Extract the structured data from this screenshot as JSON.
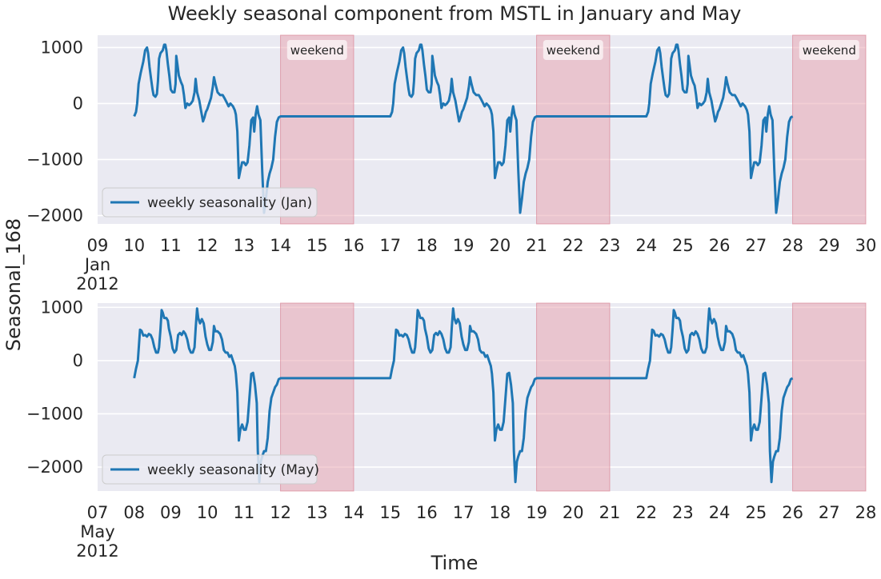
{
  "chart_data": {
    "type": "line",
    "title": "Weekly seasonal component from MSTL in January and May",
    "xlabel": "Time",
    "ylabel": "Seasonal_168",
    "colors": {
      "line": "#1f77b4",
      "weekend": "#e8a0ac",
      "background": "#eaeaf2",
      "grid": "#ffffff"
    },
    "panels": [
      {
        "name": "jan",
        "series_name": "weekly seasonality (Jan)",
        "x_start": "2012-01-09",
        "x_end": "2012-01-30",
        "x_ticks": [
          "09",
          "10",
          "11",
          "12",
          "13",
          "14",
          "15",
          "16",
          "17",
          "18",
          "19",
          "20",
          "21",
          "22",
          "23",
          "24",
          "25",
          "26",
          "27",
          "28",
          "29",
          "30"
        ],
        "x_month_label": "Jan",
        "x_year_label": "2012",
        "ylim": [
          -2150,
          1220
        ],
        "y_ticks": [
          1000,
          0,
          -1000,
          -2000
        ],
        "y_tick_labels": [
          "1000",
          "0",
          "−1000",
          "−2000"
        ],
        "weekends": [
          {
            "start": "2012-01-14",
            "end": "2012-01-16",
            "label": "weekend"
          },
          {
            "start": "2012-01-21",
            "end": "2012-01-23",
            "label": "weekend"
          },
          {
            "start": "2012-01-28",
            "end": "2012-01-30",
            "label": "weekend"
          }
        ],
        "pattern": [
          [
            0.0,
            -230
          ],
          [
            0.05,
            -150
          ],
          [
            0.08,
            0
          ],
          [
            0.12,
            350
          ],
          [
            0.18,
            550
          ],
          [
            0.25,
            750
          ],
          [
            0.3,
            950
          ],
          [
            0.35,
            1000
          ],
          [
            0.38,
            900
          ],
          [
            0.42,
            650
          ],
          [
            0.46,
            450
          ],
          [
            0.5,
            250
          ],
          [
            0.53,
            150
          ],
          [
            0.58,
            120
          ],
          [
            0.62,
            170
          ],
          [
            0.65,
            400
          ],
          [
            0.68,
            800
          ],
          [
            0.72,
            900
          ],
          [
            0.78,
            950
          ],
          [
            0.82,
            1050
          ],
          [
            0.85,
            1050
          ],
          [
            0.88,
            950
          ],
          [
            0.92,
            700
          ],
          [
            0.96,
            500
          ],
          [
            1.0,
            250
          ],
          [
            1.05,
            200
          ],
          [
            1.1,
            200
          ],
          [
            1.13,
            350
          ],
          [
            1.15,
            850
          ],
          [
            1.18,
            700
          ],
          [
            1.22,
            500
          ],
          [
            1.28,
            380
          ],
          [
            1.32,
            320
          ],
          [
            1.36,
            150
          ],
          [
            1.4,
            -80
          ],
          [
            1.45,
            0
          ],
          [
            1.5,
            -30
          ],
          [
            1.55,
            0
          ],
          [
            1.6,
            50
          ],
          [
            1.65,
            200
          ],
          [
            1.68,
            440
          ],
          [
            1.72,
            200
          ],
          [
            1.78,
            50
          ],
          [
            1.82,
            -100
          ],
          [
            1.88,
            -320
          ],
          [
            1.92,
            -250
          ],
          [
            1.96,
            -150
          ],
          [
            2.0,
            -100
          ],
          [
            2.05,
            0
          ],
          [
            2.1,
            100
          ],
          [
            2.15,
            300
          ],
          [
            2.18,
            470
          ],
          [
            2.22,
            350
          ],
          [
            2.28,
            200
          ],
          [
            2.35,
            150
          ],
          [
            2.42,
            150
          ],
          [
            2.48,
            80
          ],
          [
            2.52,
            30
          ],
          [
            2.58,
            -50
          ],
          [
            2.63,
            0
          ],
          [
            2.7,
            -50
          ],
          [
            2.75,
            -120
          ],
          [
            2.78,
            -200
          ],
          [
            2.82,
            -500
          ],
          [
            2.86,
            -1330
          ],
          [
            2.9,
            -1200
          ],
          [
            2.95,
            -1050
          ],
          [
            3.0,
            -1050
          ],
          [
            3.05,
            -1100
          ],
          [
            3.1,
            -1050
          ],
          [
            3.15,
            -750
          ],
          [
            3.2,
            -300
          ],
          [
            3.25,
            -250
          ],
          [
            3.28,
            -500
          ],
          [
            3.32,
            -200
          ],
          [
            3.36,
            -50
          ],
          [
            3.4,
            -200
          ],
          [
            3.45,
            -300
          ],
          [
            3.5,
            -1200
          ],
          [
            3.55,
            -1950
          ],
          [
            3.6,
            -1700
          ],
          [
            3.65,
            -1400
          ],
          [
            3.7,
            -1250
          ],
          [
            3.75,
            -1150
          ],
          [
            3.8,
            -1000
          ],
          [
            3.85,
            -600
          ],
          [
            3.9,
            -330
          ],
          [
            3.95,
            -250
          ],
          [
            4.0,
            -230
          ]
        ]
      },
      {
        "name": "may",
        "series_name": "weekly seasonality (May)",
        "x_start": "2012-05-07",
        "x_end": "2012-05-28",
        "x_ticks": [
          "07",
          "08",
          "09",
          "10",
          "11",
          "12",
          "13",
          "14",
          "15",
          "16",
          "17",
          "18",
          "19",
          "20",
          "21",
          "22",
          "23",
          "24",
          "25",
          "26",
          "27",
          "28"
        ],
        "x_month_label": "May",
        "x_year_label": "2012",
        "ylim": [
          -2450,
          1080
        ],
        "y_ticks": [
          1000,
          0,
          -1000,
          -2000
        ],
        "y_tick_labels": [
          "1000",
          "0",
          "−1000",
          "−2000"
        ],
        "weekends": [
          {
            "start": "2012-05-12",
            "end": "2012-05-14"
          },
          {
            "start": "2012-05-19",
            "end": "2012-05-21"
          },
          {
            "start": "2012-05-26",
            "end": "2012-05-28"
          }
        ],
        "pattern": [
          [
            0.0,
            -330
          ],
          [
            0.05,
            -150
          ],
          [
            0.1,
            0
          ],
          [
            0.13,
            300
          ],
          [
            0.16,
            580
          ],
          [
            0.2,
            560
          ],
          [
            0.25,
            470
          ],
          [
            0.3,
            480
          ],
          [
            0.35,
            450
          ],
          [
            0.4,
            500
          ],
          [
            0.45,
            480
          ],
          [
            0.5,
            400
          ],
          [
            0.55,
            250
          ],
          [
            0.6,
            150
          ],
          [
            0.65,
            150
          ],
          [
            0.68,
            250
          ],
          [
            0.72,
            600
          ],
          [
            0.75,
            950
          ],
          [
            0.78,
            900
          ],
          [
            0.82,
            800
          ],
          [
            0.88,
            800
          ],
          [
            0.92,
            750
          ],
          [
            0.95,
            600
          ],
          [
            1.0,
            450
          ],
          [
            1.05,
            230
          ],
          [
            1.1,
            150
          ],
          [
            1.15,
            200
          ],
          [
            1.2,
            480
          ],
          [
            1.25,
            520
          ],
          [
            1.3,
            480
          ],
          [
            1.35,
            550
          ],
          [
            1.4,
            500
          ],
          [
            1.45,
            400
          ],
          [
            1.5,
            230
          ],
          [
            1.55,
            150
          ],
          [
            1.6,
            150
          ],
          [
            1.65,
            250
          ],
          [
            1.68,
            600
          ],
          [
            1.72,
            980
          ],
          [
            1.75,
            800
          ],
          [
            1.8,
            700
          ],
          [
            1.85,
            780
          ],
          [
            1.9,
            700
          ],
          [
            1.95,
            450
          ],
          [
            2.0,
            300
          ],
          [
            2.05,
            200
          ],
          [
            2.1,
            200
          ],
          [
            2.15,
            350
          ],
          [
            2.18,
            650
          ],
          [
            2.22,
            550
          ],
          [
            2.28,
            550
          ],
          [
            2.35,
            500
          ],
          [
            2.4,
            400
          ],
          [
            2.45,
            200
          ],
          [
            2.5,
            150
          ],
          [
            2.55,
            150
          ],
          [
            2.6,
            70
          ],
          [
            2.65,
            100
          ],
          [
            2.7,
            0
          ],
          [
            2.75,
            -100
          ],
          [
            2.78,
            -250
          ],
          [
            2.82,
            -600
          ],
          [
            2.86,
            -1500
          ],
          [
            2.9,
            -1300
          ],
          [
            2.95,
            -1200
          ],
          [
            3.0,
            -1300
          ],
          [
            3.05,
            -1300
          ],
          [
            3.1,
            -1150
          ],
          [
            3.15,
            -700
          ],
          [
            3.2,
            -250
          ],
          [
            3.25,
            -230
          ],
          [
            3.3,
            -450
          ],
          [
            3.35,
            -800
          ],
          [
            3.38,
            -1700
          ],
          [
            3.42,
            -2280
          ],
          [
            3.46,
            -1900
          ],
          [
            3.5,
            -1800
          ],
          [
            3.55,
            -1700
          ],
          [
            3.6,
            -1700
          ],
          [
            3.65,
            -1450
          ],
          [
            3.7,
            -950
          ],
          [
            3.75,
            -700
          ],
          [
            3.8,
            -600
          ],
          [
            3.85,
            -500
          ],
          [
            3.9,
            -450
          ],
          [
            3.95,
            -350
          ],
          [
            4.0,
            -330
          ]
        ]
      }
    ]
  }
}
